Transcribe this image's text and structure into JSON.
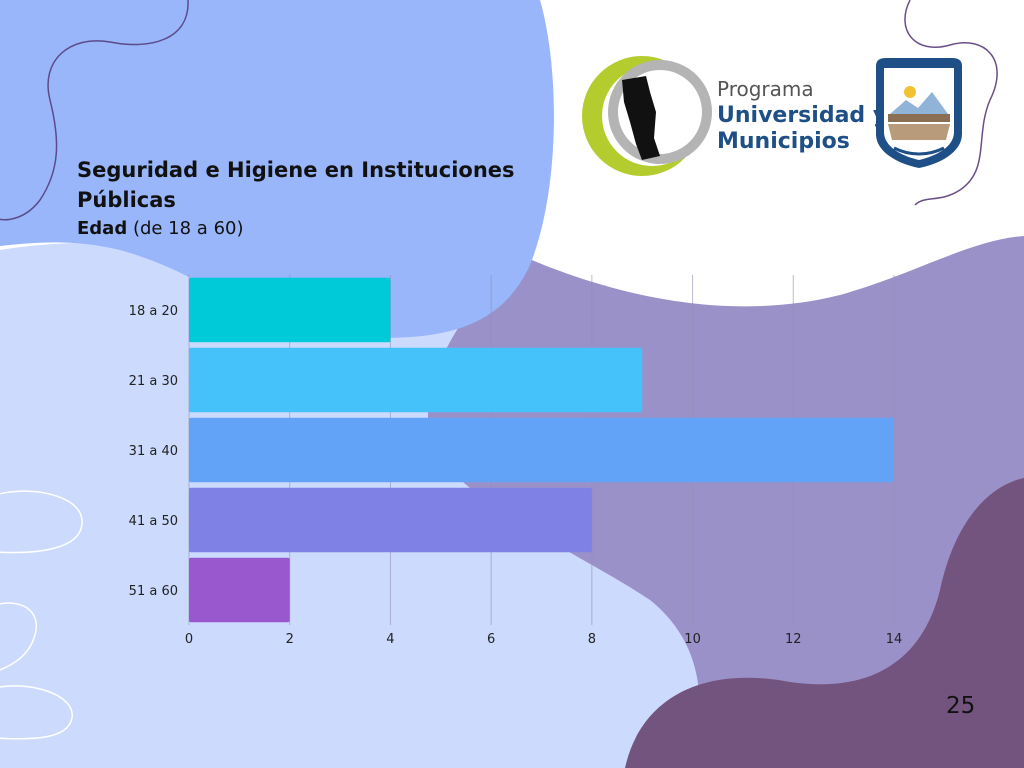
{
  "slide": {
    "title": "Seguridad e Higiene en Instituciones Públicas",
    "subtitle_bold": "Edad",
    "subtitle_rest": " (de 18 a 60)",
    "page_number": "25"
  },
  "logo": {
    "line1": "Programa",
    "line2": "Universidad y",
    "line3": "Municipios"
  },
  "colors": {
    "bg_blue": "#98b6f9",
    "bg_light": "#ccdbfd",
    "bg_purple": "#9b91c9",
    "bg_dark": "#73547f",
    "logo_blue": "#1e4f86",
    "logo_green": "#b5cc2e"
  },
  "chart_data": {
    "type": "bar",
    "orientation": "horizontal",
    "categories": [
      "18 a 20",
      "21 a 30",
      "31 a 40",
      "41 a 50",
      "51 a 60"
    ],
    "values": [
      4,
      9,
      14,
      8,
      2
    ],
    "bar_colors": [
      "#00c9d8",
      "#46c2fb",
      "#62a3f7",
      "#7f81e5",
      "#9958cd"
    ],
    "xlim": [
      0,
      14
    ],
    "xticks": [
      0,
      2,
      4,
      6,
      8,
      10,
      12,
      14
    ],
    "grid": "vertical"
  }
}
